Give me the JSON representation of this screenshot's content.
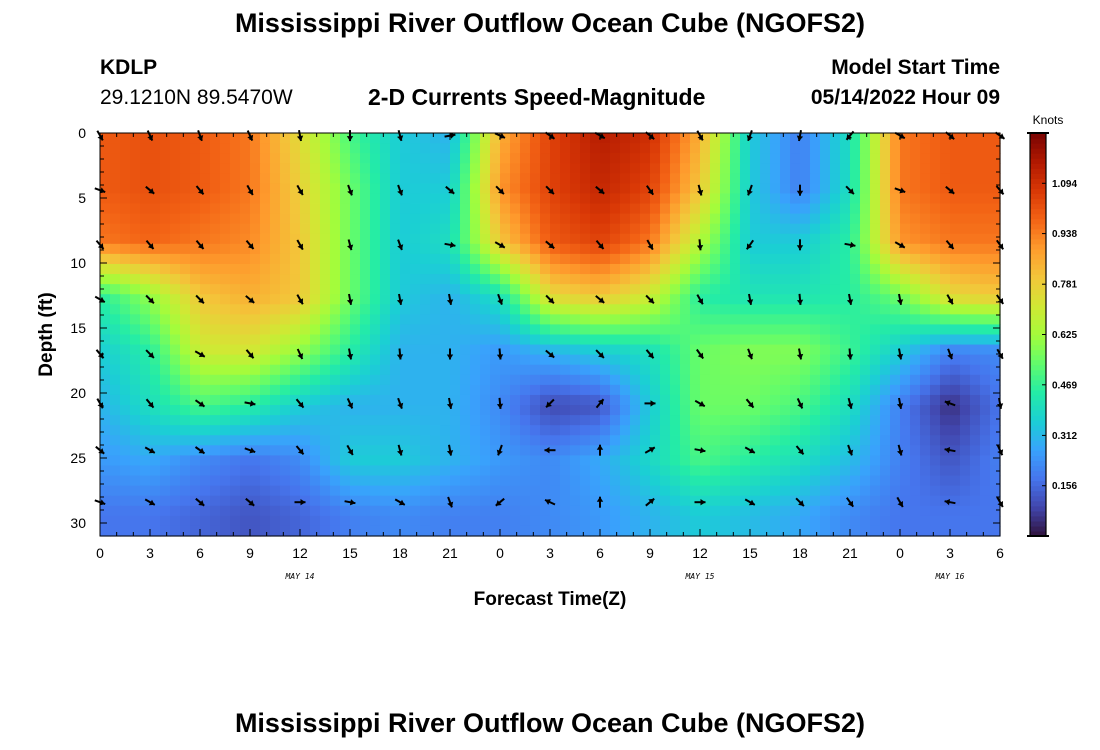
{
  "header": {
    "title": "Mississippi River Outflow Ocean Cube (NGOFS2)",
    "station_id": "KDLP",
    "station_coords": "29.1210N  89.5470W",
    "product_name": "2-D Currents Speed-Magnitude",
    "model_start_label": "Model Start Time",
    "model_start_value": "05/14/2022 Hour 09"
  },
  "footer": {
    "title": "Mississippi River Outflow Ocean Cube (NGOFS2)"
  },
  "colors": {
    "speed_scale": [
      "#30123b",
      "#4145ab",
      "#4675ed",
      "#39a2fc",
      "#1bcfd4",
      "#24eca6",
      "#61fc6c",
      "#a4fc3b",
      "#d1e834",
      "#f3c63a",
      "#fe9b2d",
      "#f36315",
      "#d93806",
      "#b11901",
      "#7a0402"
    ],
    "arrow": "#000000"
  },
  "chart_data": {
    "type": "heatmap",
    "title": "2-D Currents Speed-Magnitude",
    "xlabel": "Forecast Time(Z)",
    "ylabel": "Depth (ft)",
    "colorbar_label": "Knots",
    "colorbar_range": [
      0.0,
      1.25
    ],
    "colorbar_ticks": [
      "1.094",
      "0.938",
      "0.781",
      "0.625",
      "0.469",
      "0.312",
      "0.156"
    ],
    "colorbar_tick_values": [
      1.094,
      0.938,
      0.781,
      0.625,
      0.469,
      0.312,
      0.156
    ],
    "x_range": [
      0,
      54
    ],
    "x_tick_hours": [
      0,
      3,
      6,
      9,
      12,
      15,
      18,
      21,
      24,
      27,
      30,
      33,
      36,
      39,
      42,
      45,
      48,
      51,
      54
    ],
    "x_tick_labels": [
      "0",
      "3",
      "6",
      "9",
      "12",
      "15",
      "18",
      "21",
      "0",
      "3",
      "6",
      "9",
      "12",
      "15",
      "18",
      "21",
      "0",
      "3",
      "6"
    ],
    "date_labels": [
      {
        "text": "MAY 14",
        "hour": 12
      },
      {
        "text": "MAY 15",
        "hour": 36
      },
      {
        "text": "MAY 16",
        "hour": 51
      }
    ],
    "y_range": [
      0,
      31
    ],
    "y_inverted": true,
    "y_ticks": [
      0,
      5,
      10,
      15,
      20,
      25,
      30
    ],
    "y_tick_labels": [
      "0",
      "5",
      "10",
      "15",
      "20",
      "25",
      "30"
    ],
    "grid_hours": [
      0,
      3,
      6,
      9,
      12,
      15,
      18,
      21,
      24,
      27,
      30,
      33,
      36,
      39,
      42,
      45,
      48,
      51,
      54
    ],
    "grid_depths": [
      0,
      4.2,
      8.4,
      12.6,
      16.8,
      21.0,
      25.2,
      29.4
    ],
    "speed_knots": [
      [
        1.0,
        1.02,
        1.0,
        0.95,
        0.75,
        0.5,
        0.35,
        0.3,
        0.85,
        1.05,
        1.15,
        1.1,
        0.85,
        0.35,
        0.2,
        0.4,
        0.95,
        1.0,
        1.0
      ],
      [
        1.0,
        1.02,
        1.0,
        0.95,
        0.78,
        0.55,
        0.35,
        0.35,
        0.9,
        1.05,
        1.12,
        1.05,
        0.8,
        0.35,
        0.2,
        0.4,
        0.95,
        1.0,
        1.0
      ],
      [
        0.95,
        0.98,
        0.95,
        0.92,
        0.8,
        0.55,
        0.35,
        0.4,
        0.8,
        1.0,
        1.05,
        0.95,
        0.65,
        0.35,
        0.35,
        0.45,
        0.9,
        0.95,
        0.95
      ],
      [
        0.45,
        0.6,
        0.8,
        0.85,
        0.8,
        0.55,
        0.35,
        0.3,
        0.4,
        0.75,
        0.8,
        0.7,
        0.45,
        0.42,
        0.42,
        0.45,
        0.55,
        0.75,
        0.8
      ],
      [
        0.35,
        0.45,
        0.7,
        0.72,
        0.6,
        0.45,
        0.3,
        0.3,
        0.25,
        0.3,
        0.35,
        0.4,
        0.55,
        0.58,
        0.58,
        0.48,
        0.35,
        0.2,
        0.22
      ],
      [
        0.3,
        0.4,
        0.5,
        0.45,
        0.35,
        0.3,
        0.3,
        0.3,
        0.22,
        0.1,
        0.12,
        0.35,
        0.55,
        0.55,
        0.5,
        0.4,
        0.2,
        0.05,
        0.18
      ],
      [
        0.25,
        0.28,
        0.22,
        0.18,
        0.22,
        0.35,
        0.35,
        0.3,
        0.25,
        0.22,
        0.28,
        0.38,
        0.5,
        0.45,
        0.4,
        0.32,
        0.2,
        0.12,
        0.2
      ],
      [
        0.18,
        0.18,
        0.15,
        0.12,
        0.15,
        0.2,
        0.22,
        0.2,
        0.2,
        0.22,
        0.25,
        0.3,
        0.35,
        0.32,
        0.28,
        0.22,
        0.18,
        0.18,
        0.18
      ]
    ],
    "arrows": [
      {
        "depth": 0.2,
        "hours": [
          0,
          3,
          6,
          9,
          12,
          15,
          18,
          21,
          24,
          27,
          30,
          33,
          36,
          39,
          42,
          45,
          48,
          51,
          54
        ],
        "directions": [
          150,
          155,
          160,
          155,
          170,
          180,
          165,
          80,
          115,
          125,
          120,
          130,
          150,
          200,
          190,
          220,
          120,
          130,
          125
        ]
      },
      {
        "depth": 4.4,
        "hours": [
          0,
          3,
          6,
          9,
          12,
          15,
          18,
          21,
          24,
          27,
          30,
          33,
          36,
          39,
          42,
          45,
          48,
          51,
          54
        ],
        "directions": [
          110,
          130,
          140,
          150,
          150,
          160,
          160,
          130,
          135,
          135,
          130,
          145,
          165,
          200,
          180,
          135,
          110,
          130,
          140
        ]
      },
      {
        "depth": 8.6,
        "hours": [
          0,
          3,
          6,
          9,
          12,
          15,
          18,
          21,
          24,
          27,
          30,
          33,
          36,
          39,
          42,
          45,
          48,
          51,
          54
        ],
        "directions": [
          140,
          140,
          140,
          140,
          150,
          165,
          160,
          100,
          120,
          130,
          140,
          150,
          175,
          215,
          180,
          100,
          120,
          140,
          145
        ]
      },
      {
        "depth": 12.8,
        "hours": [
          0,
          3,
          6,
          9,
          12,
          15,
          18,
          21,
          24,
          27,
          30,
          33,
          36,
          39,
          42,
          45,
          48,
          51,
          54
        ],
        "directions": [
          120,
          135,
          135,
          130,
          150,
          170,
          170,
          170,
          160,
          135,
          130,
          135,
          150,
          170,
          175,
          170,
          170,
          150,
          145
        ]
      },
      {
        "depth": 17.0,
        "hours": [
          0,
          3,
          6,
          9,
          12,
          15,
          18,
          21,
          24,
          27,
          30,
          33,
          36,
          39,
          42,
          45,
          48,
          51,
          54
        ],
        "directions": [
          140,
          135,
          120,
          140,
          155,
          170,
          175,
          180,
          175,
          130,
          135,
          140,
          145,
          160,
          170,
          175,
          170,
          160,
          150
        ]
      },
      {
        "depth": 20.8,
        "hours": [
          0,
          3,
          6,
          9,
          12,
          15,
          18,
          21,
          24,
          27,
          30,
          33,
          36,
          39,
          42,
          45,
          48,
          51,
          54
        ],
        "directions": [
          150,
          140,
          125,
          100,
          140,
          155,
          160,
          170,
          175,
          225,
          40,
          90,
          120,
          140,
          155,
          165,
          170,
          290,
          170
        ]
      },
      {
        "depth": 24.4,
        "hours": [
          0,
          3,
          6,
          9,
          12,
          15,
          18,
          21,
          24,
          27,
          30,
          33,
          36,
          39,
          42,
          45,
          48,
          51,
          54
        ],
        "directions": [
          130,
          120,
          125,
          110,
          140,
          150,
          165,
          170,
          200,
          270,
          0,
          60,
          100,
          120,
          140,
          160,
          165,
          280,
          155
        ]
      },
      {
        "depth": 28.4,
        "hours": [
          0,
          3,
          6,
          9,
          12,
          15,
          18,
          21,
          24,
          27,
          30,
          33,
          36,
          39,
          42,
          45,
          48,
          51,
          54
        ],
        "directions": [
          110,
          120,
          130,
          130,
          90,
          100,
          120,
          160,
          230,
          295,
          0,
          50,
          90,
          120,
          135,
          145,
          150,
          280,
          150
        ]
      }
    ]
  }
}
